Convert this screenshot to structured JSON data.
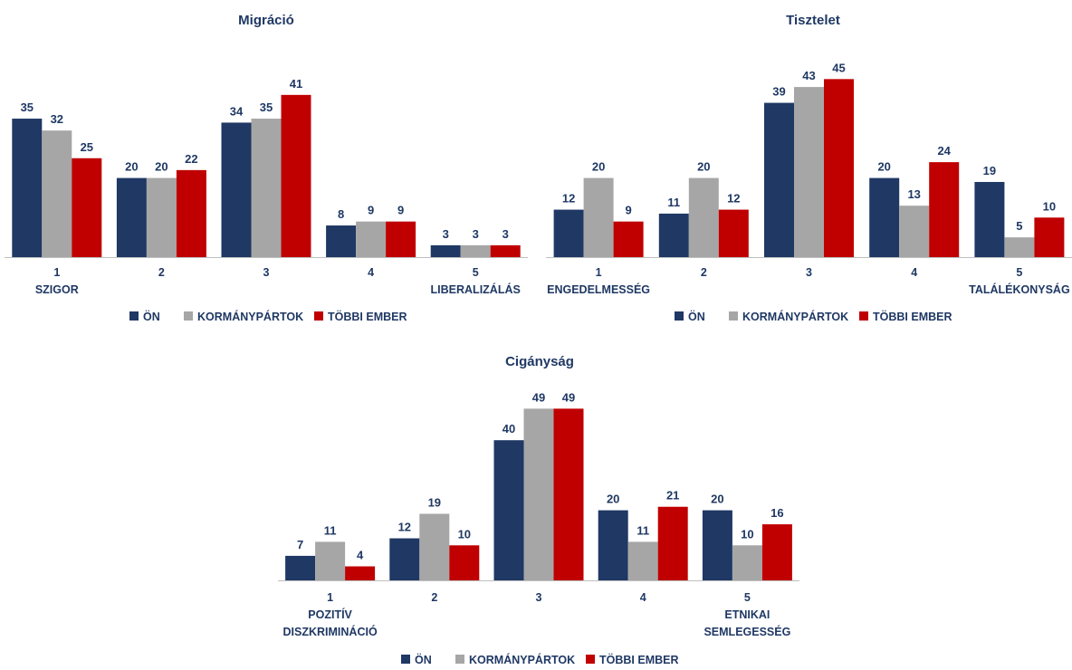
{
  "colors": {
    "on": "#1f3864",
    "kormanypartok": "#a6a6a6",
    "tobbi": "#c00000",
    "text": "#1f3864",
    "axis": "#bfbfbf"
  },
  "legend": {
    "on": "ÖN",
    "kormanypartok": "KORMÁNYPÁRTOK",
    "tobbi": "TÖBBI EMBER"
  },
  "chart_data": [
    {
      "type": "bar",
      "title": "Migráció",
      "categories": [
        [
          "1",
          "SZIGOR"
        ],
        [
          "2"
        ],
        [
          "3"
        ],
        [
          "4"
        ],
        [
          "5",
          "LIBERALIZÁLÁS"
        ]
      ],
      "series": [
        {
          "name": "ÖN",
          "values": [
            35,
            20,
            34,
            8,
            3
          ]
        },
        {
          "name": "KORMÁNYPÁRTOK",
          "values": [
            32,
            20,
            35,
            9,
            3
          ]
        },
        {
          "name": "TÖBBI EMBER",
          "values": [
            25,
            22,
            41,
            9,
            3
          ]
        }
      ],
      "legend_position": "bottom"
    },
    {
      "type": "bar",
      "title": "Tisztelet",
      "categories": [
        [
          "1",
          "ENGEDELMESSÉG"
        ],
        [
          "2"
        ],
        [
          "3"
        ],
        [
          "4"
        ],
        [
          "5",
          "TALÁLÉKONYSÁG"
        ]
      ],
      "series": [
        {
          "name": "ÖN",
          "values": [
            12,
            11,
            39,
            20,
            19
          ]
        },
        {
          "name": "KORMÁNYPÁRTOK",
          "values": [
            20,
            20,
            43,
            13,
            5
          ]
        },
        {
          "name": "TÖBBI EMBER",
          "values": [
            9,
            12,
            45,
            24,
            10
          ]
        }
      ],
      "legend_position": "bottom"
    },
    {
      "type": "bar",
      "title": "Cigányság",
      "categories": [
        [
          "1",
          "POZITÍV",
          "DISZKRIMINÁCIÓ"
        ],
        [
          "2"
        ],
        [
          "3"
        ],
        [
          "4"
        ],
        [
          "5",
          "ETNIKAI",
          "SEMLEGESSÉG"
        ]
      ],
      "series": [
        {
          "name": "ÖN",
          "values": [
            7,
            12,
            40,
            20,
            20
          ]
        },
        {
          "name": "KORMÁNYPÁRTOK",
          "values": [
            11,
            19,
            49,
            11,
            10
          ]
        },
        {
          "name": "TÖBBI EMBER",
          "values": [
            4,
            10,
            49,
            21,
            16
          ]
        }
      ],
      "legend_position": "bottom"
    }
  ]
}
